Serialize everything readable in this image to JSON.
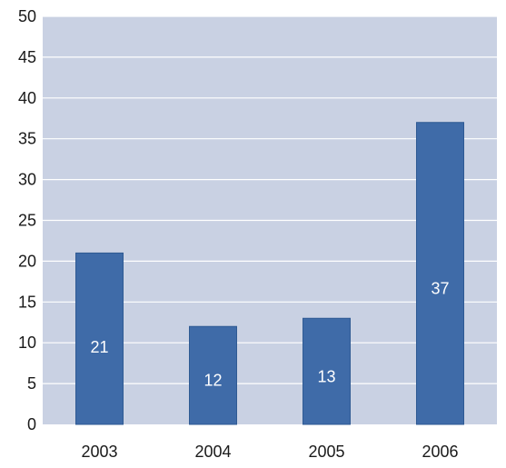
{
  "chart_data": {
    "type": "bar",
    "categories": [
      "2003",
      "2004",
      "2005",
      "2006"
    ],
    "values": [
      21,
      12,
      13,
      37
    ],
    "data_labels": [
      "21",
      "12",
      "13",
      "37"
    ],
    "title": "",
    "xlabel": "",
    "ylabel": "",
    "ylim": [
      0,
      50
    ],
    "yticks": [
      0,
      5,
      10,
      15,
      20,
      25,
      30,
      35,
      40,
      45,
      50
    ],
    "grid": true,
    "legend": "none",
    "colors": {
      "plot_background": "#c9d1e3",
      "gridline": "#ffffff",
      "bar_fill": "#3f6ba8",
      "bar_edge": "#2f5a93",
      "data_label_text": "#ffffff",
      "tick_text": "#1a1a1a"
    }
  }
}
